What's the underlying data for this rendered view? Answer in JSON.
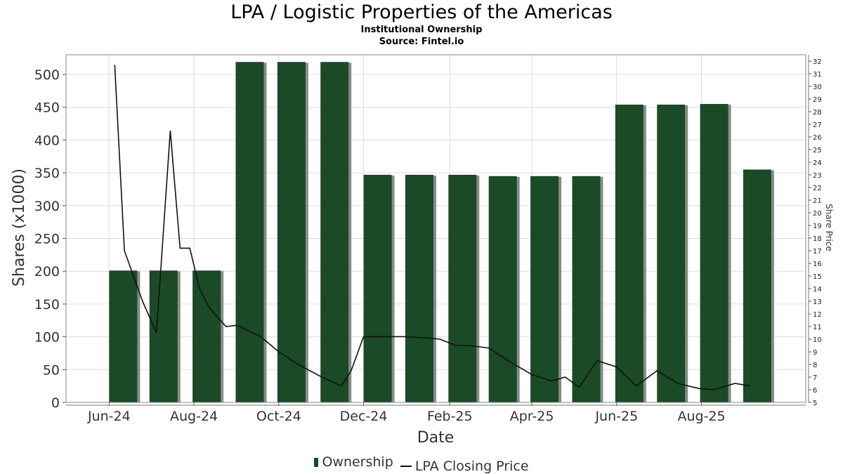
{
  "chart_data": {
    "type": "bar",
    "title": "LPA / Logistic Properties of the Americas",
    "subtitle": "Institutional Ownership",
    "source": "Source: Fintel.io",
    "xlabel": "Date",
    "ylabel": "Shares (x1000)",
    "y2label": "Share Price",
    "ylim": [
      0,
      530
    ],
    "y2lim": [
      5,
      32.5
    ],
    "y_ticks": [
      0,
      50,
      100,
      150,
      200,
      250,
      300,
      350,
      400,
      450,
      500
    ],
    "y2_ticks": [
      5,
      6,
      7,
      8,
      9,
      10,
      11,
      12,
      13,
      14,
      15,
      16,
      17,
      18,
      19,
      20,
      21,
      22,
      23,
      24,
      25,
      26,
      27,
      28,
      29,
      30,
      31,
      32
    ],
    "x_range": [
      "2024-05-01",
      "2025-10-15"
    ],
    "x_ticks": [
      {
        "date": "2024-06-01",
        "label": "Jun-24"
      },
      {
        "date": "2024-08-01",
        "label": "Aug-24"
      },
      {
        "date": "2024-10-01",
        "label": "Oct-24"
      },
      {
        "date": "2024-12-01",
        "label": "Dec-24"
      },
      {
        "date": "2025-02-01",
        "label": "Feb-25"
      },
      {
        "date": "2025-04-01",
        "label": "Apr-25"
      },
      {
        "date": "2025-06-01",
        "label": "Jun-25"
      },
      {
        "date": "2025-08-01",
        "label": "Aug-25"
      }
    ],
    "grid": true,
    "legend_position": "bottom-center",
    "colors": {
      "bar": "#1a4a26",
      "bar_shadow": "#8a8a8a",
      "line": "#111111",
      "grid": "#dddddd"
    },
    "series": [
      {
        "name": "Ownership",
        "type": "bar",
        "points": [
          {
            "date": "2024-06-01",
            "value": 201
          },
          {
            "date": "2024-06-30",
            "value": 201
          },
          {
            "date": "2024-07-31",
            "value": 201
          },
          {
            "date": "2024-08-31",
            "value": 519
          },
          {
            "date": "2024-09-30",
            "value": 519
          },
          {
            "date": "2024-10-31",
            "value": 519
          },
          {
            "date": "2024-12-01",
            "value": 347
          },
          {
            "date": "2024-12-31",
            "value": 347
          },
          {
            "date": "2025-01-31",
            "value": 347
          },
          {
            "date": "2025-03-01",
            "value": 345
          },
          {
            "date": "2025-03-31",
            "value": 345
          },
          {
            "date": "2025-04-30",
            "value": 345
          },
          {
            "date": "2025-05-31",
            "value": 454
          },
          {
            "date": "2025-06-30",
            "value": 454
          },
          {
            "date": "2025-07-31",
            "value": 455
          },
          {
            "date": "2025-08-31",
            "value": 355
          }
        ]
      },
      {
        "name": "LPA Closing Price",
        "type": "line",
        "points": [
          {
            "date": "2024-06-05",
            "value": 31.7
          },
          {
            "date": "2024-06-12",
            "value": 17.0
          },
          {
            "date": "2024-06-25",
            "value": 13.0
          },
          {
            "date": "2024-07-05",
            "value": 10.5
          },
          {
            "date": "2024-07-15",
            "value": 26.5
          },
          {
            "date": "2024-07-22",
            "value": 17.2
          },
          {
            "date": "2024-07-29",
            "value": 17.2
          },
          {
            "date": "2024-08-05",
            "value": 14.0
          },
          {
            "date": "2024-08-12",
            "value": 12.5
          },
          {
            "date": "2024-08-24",
            "value": 11.0
          },
          {
            "date": "2024-09-01",
            "value": 11.1
          },
          {
            "date": "2024-09-18",
            "value": 10.2
          },
          {
            "date": "2024-10-01",
            "value": 9.0
          },
          {
            "date": "2024-10-15",
            "value": 8.0
          },
          {
            "date": "2024-11-01",
            "value": 7.0
          },
          {
            "date": "2024-11-15",
            "value": 6.3
          },
          {
            "date": "2024-11-22",
            "value": 7.5
          },
          {
            "date": "2024-12-01",
            "value": 10.2
          },
          {
            "date": "2024-12-15",
            "value": 10.2
          },
          {
            "date": "2025-01-01",
            "value": 10.2
          },
          {
            "date": "2025-01-15",
            "value": 10.1
          },
          {
            "date": "2025-01-25",
            "value": 10.0
          },
          {
            "date": "2025-02-05",
            "value": 9.5
          },
          {
            "date": "2025-02-15",
            "value": 9.5
          },
          {
            "date": "2025-03-01",
            "value": 9.3
          },
          {
            "date": "2025-03-15",
            "value": 8.3
          },
          {
            "date": "2025-04-01",
            "value": 7.2
          },
          {
            "date": "2025-04-15",
            "value": 6.7
          },
          {
            "date": "2025-04-25",
            "value": 7.0
          },
          {
            "date": "2025-05-05",
            "value": 6.2
          },
          {
            "date": "2025-05-18",
            "value": 8.3
          },
          {
            "date": "2025-06-01",
            "value": 7.8
          },
          {
            "date": "2025-06-15",
            "value": 6.3
          },
          {
            "date": "2025-06-30",
            "value": 7.5
          },
          {
            "date": "2025-07-15",
            "value": 6.5
          },
          {
            "date": "2025-07-30",
            "value": 6.1
          },
          {
            "date": "2025-08-10",
            "value": 6.0
          },
          {
            "date": "2025-08-25",
            "value": 6.5
          },
          {
            "date": "2025-09-05",
            "value": 6.3
          }
        ]
      }
    ]
  }
}
